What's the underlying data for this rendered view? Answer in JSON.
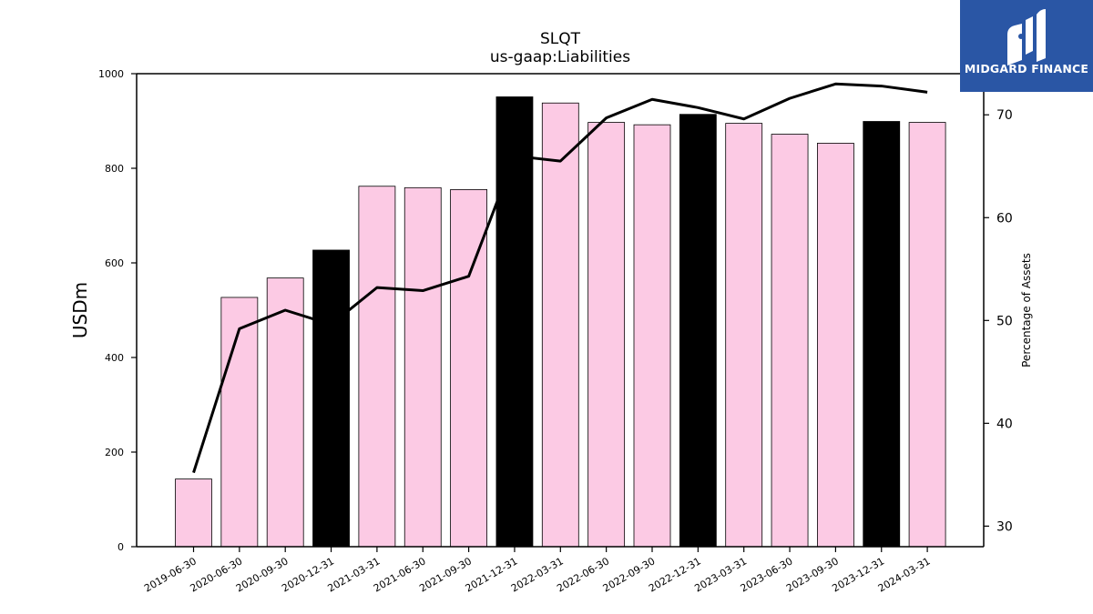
{
  "chart_data": {
    "type": "bar",
    "title": "SLQT",
    "subtitle": "us-gaap:Liabilities",
    "ylabel": "USDm",
    "y2label": "Percentage of Assets",
    "ylim": [
      0,
      1000
    ],
    "y2lim": [
      28,
      74
    ],
    "yticks": [
      "0",
      "200",
      "400",
      "600",
      "800",
      "1000"
    ],
    "y2ticks": [
      "30",
      "40",
      "50",
      "60",
      "70"
    ],
    "categories": [
      "2019-06-30",
      "2020-06-30",
      "2020-09-30",
      "2020-12-31",
      "2021-03-31",
      "2021-06-30",
      "2021-09-30",
      "2021-12-31",
      "2022-03-31",
      "2022-06-30",
      "2022-09-30",
      "2022-12-31",
      "2023-03-31",
      "2023-06-30",
      "2023-09-30",
      "2023-12-31",
      "2024-03-31"
    ],
    "series": [
      {
        "values": [
          143,
          527,
          568,
          627,
          762,
          759,
          755,
          951,
          938,
          897,
          892,
          914,
          895,
          872,
          853,
          899,
          897
        ],
        "highlight": [
          false,
          false,
          false,
          true,
          false,
          false,
          false,
          true,
          false,
          false,
          false,
          true,
          false,
          false,
          false,
          true,
          false
        ]
      },
      {
        "axis": "right",
        "type": "line",
        "values": [
          35.2,
          49.2,
          51.0,
          49.6,
          53.2,
          52.9,
          54.3,
          66.0,
          65.5,
          69.7,
          71.5,
          70.7,
          69.6,
          71.6,
          73.0,
          72.8,
          72.2
        ]
      }
    ],
    "colors": {
      "bar": "#fccae4",
      "highlight_bar": "#000000",
      "line": "#000000"
    },
    "grid": false
  },
  "logo": {
    "text": "MIDGARD FINANCE"
  }
}
